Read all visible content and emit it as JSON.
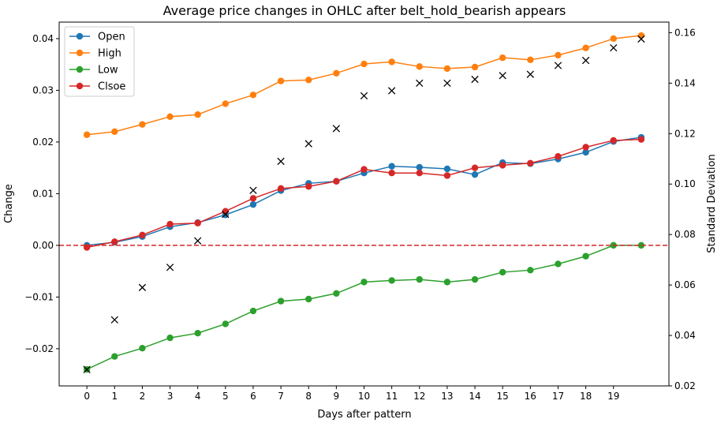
{
  "chart_data": {
    "type": "line",
    "title": "Average price changes in OHLC after belt_hold_bearish appears",
    "xlabel": "Days after pattern",
    "ylabel": "Change",
    "y2label": "Standard Deviation",
    "x": [
      0,
      1,
      2,
      3,
      4,
      5,
      6,
      7,
      8,
      9,
      10,
      11,
      12,
      13,
      14,
      15,
      16,
      17,
      18,
      19,
      20
    ],
    "x_ticks": [
      0,
      1,
      2,
      3,
      4,
      5,
      6,
      7,
      8,
      9,
      10,
      11,
      12,
      13,
      14,
      15,
      16,
      17,
      18,
      19
    ],
    "x_tick_labels": [
      "0",
      "1",
      "2",
      "3",
      "4",
      "5",
      "6",
      "7",
      "8",
      "9",
      "10",
      "11",
      "12",
      "13",
      "14",
      "15",
      "16",
      "17",
      "18",
      "19"
    ],
    "xlim": [
      -1,
      21
    ],
    "ylim": [
      -0.0272,
      0.0432
    ],
    "y_ticks": [
      -0.02,
      -0.01,
      0.0,
      0.01,
      0.02,
      0.03,
      0.04
    ],
    "y_tick_labels": [
      "−0.02",
      "−0.01",
      "0.00",
      "0.01",
      "0.02",
      "0.03",
      "0.04"
    ],
    "y2lim": [
      0.02,
      0.1642
    ],
    "y2_ticks": [
      0.02,
      0.04,
      0.06,
      0.08,
      0.1,
      0.12,
      0.14,
      0.16
    ],
    "y2_tick_labels": [
      "0.02",
      "0.04",
      "0.06",
      "0.08",
      "0.10",
      "0.12",
      "0.14",
      "0.16"
    ],
    "series": [
      {
        "name": "Open",
        "color": "#1f77b4",
        "values": [
          0.0,
          0.0006,
          0.0017,
          0.0036,
          0.0044,
          0.0059,
          0.0079,
          0.0106,
          0.012,
          0.0124,
          0.014,
          0.0153,
          0.0151,
          0.0148,
          0.0137,
          0.016,
          0.0158,
          0.0167,
          0.018,
          0.0201,
          0.0209
        ]
      },
      {
        "name": "High",
        "color": "#ff7f0e",
        "values": [
          0.0214,
          0.022,
          0.0234,
          0.0249,
          0.0253,
          0.0274,
          0.0291,
          0.0318,
          0.032,
          0.0333,
          0.0351,
          0.0355,
          0.0346,
          0.0342,
          0.0345,
          0.0363,
          0.0359,
          0.0368,
          0.0382,
          0.04,
          0.0406
        ]
      },
      {
        "name": "Low",
        "color": "#2ca02c",
        "values": [
          -0.024,
          -0.0215,
          -0.0199,
          -0.0179,
          -0.017,
          -0.0152,
          -0.0127,
          -0.0108,
          -0.0104,
          -0.0093,
          -0.0071,
          -0.0068,
          -0.0066,
          -0.0071,
          -0.0066,
          -0.0052,
          -0.0048,
          -0.0036,
          -0.0021,
          0.0,
          0.0
        ]
      },
      {
        "name": "Clsoe",
        "color": "#d62728",
        "values": [
          -0.0004,
          0.0007,
          0.002,
          0.0041,
          0.0043,
          0.0066,
          0.0091,
          0.011,
          0.0114,
          0.0124,
          0.0147,
          0.014,
          0.014,
          0.0135,
          0.015,
          0.0155,
          0.0159,
          0.0172,
          0.019,
          0.0203,
          0.0205
        ]
      }
    ],
    "std_dev": {
      "name": "Standard Deviation",
      "marker": "x",
      "color": "#000000",
      "values": [
        0.0265,
        0.0462,
        0.059,
        0.067,
        0.0775,
        0.088,
        0.0975,
        0.109,
        0.116,
        0.122,
        0.135,
        0.137,
        0.14,
        0.14,
        0.1415,
        0.143,
        0.1435,
        0.147,
        0.149,
        0.154,
        0.1575
      ]
    },
    "reference_line": {
      "y": 0.0,
      "color": "#d62728",
      "style": "dashed"
    },
    "legend": {
      "placement": "top-left"
    }
  }
}
